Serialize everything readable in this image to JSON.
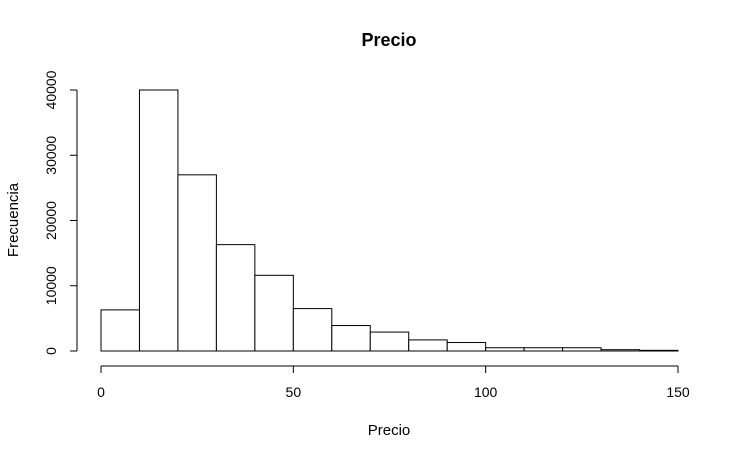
{
  "chart_data": {
    "type": "bar",
    "subtype": "histogram",
    "title": "Precio",
    "xlabel": "Precio",
    "ylabel": "Frecuencia",
    "bins": [
      {
        "x0": 0,
        "x1": 10,
        "count": 6300
      },
      {
        "x0": 10,
        "x1": 20,
        "count": 40000
      },
      {
        "x0": 20,
        "x1": 30,
        "count": 27000
      },
      {
        "x0": 30,
        "x1": 40,
        "count": 16300
      },
      {
        "x0": 40,
        "x1": 50,
        "count": 11600
      },
      {
        "x0": 50,
        "x1": 60,
        "count": 6500
      },
      {
        "x0": 60,
        "x1": 70,
        "count": 3900
      },
      {
        "x0": 70,
        "x1": 80,
        "count": 2900
      },
      {
        "x0": 80,
        "x1": 90,
        "count": 1700
      },
      {
        "x0": 90,
        "x1": 100,
        "count": 1300
      },
      {
        "x0": 100,
        "x1": 110,
        "count": 500
      },
      {
        "x0": 110,
        "x1": 120,
        "count": 500
      },
      {
        "x0": 120,
        "x1": 130,
        "count": 500
      },
      {
        "x0": 130,
        "x1": 140,
        "count": 200
      },
      {
        "x0": 140,
        "x1": 150,
        "count": 100
      }
    ],
    "xlim": [
      0,
      150
    ],
    "ylim": [
      0,
      40000
    ],
    "x_ticks": [
      0,
      50,
      100,
      150
    ],
    "y_ticks": [
      0,
      10000,
      20000,
      30000,
      40000
    ],
    "grid": false,
    "legend": "none",
    "bar_fill": "#ffffff",
    "bar_stroke": "#000000"
  }
}
